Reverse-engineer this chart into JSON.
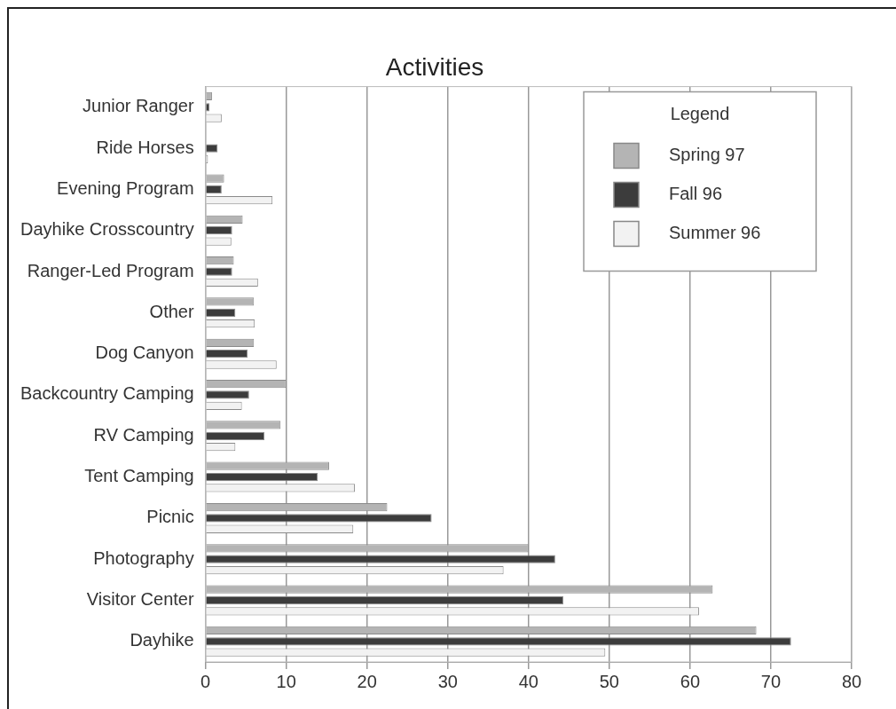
{
  "chart_data": {
    "type": "bar",
    "orientation": "horizontal",
    "title": "Activities",
    "legend_title": "Legend",
    "legend": "top right",
    "grid": "x",
    "categories": [
      "Junior Ranger",
      "Ride Horses",
      "Evening Program",
      "Dayhike Crosscountry",
      "Ranger-Led Program",
      "Other",
      "Dog Canyon",
      "Backcountry Camping",
      "RV Camping",
      "Tent Camping",
      "Picnic",
      "Photography",
      "Visitor Center",
      "Dayhike"
    ],
    "series": [
      {
        "name": "Spring 97",
        "color": "#b4b4b4",
        "values": [
          0.8,
          0,
          2.3,
          4.6,
          3.5,
          6,
          6,
          10,
          9.3,
          15.3,
          22.5,
          40,
          62.8,
          68.2
        ]
      },
      {
        "name": "Fall 96",
        "color": "#3c3c3c",
        "values": [
          0.5,
          1.5,
          2,
          3.3,
          3.3,
          3.7,
          5.2,
          5.4,
          7.3,
          13.9,
          28,
          43.3,
          44.3,
          72.5
        ]
      },
      {
        "name": "Summer 96",
        "color": "#f2f2f2",
        "values": [
          2,
          0.3,
          8.3,
          3.2,
          6.5,
          6.1,
          8.8,
          4.5,
          3.7,
          18.5,
          18.3,
          36.9,
          61.1,
          49.5
        ]
      }
    ],
    "xlim": [
      0,
      80
    ],
    "xticks": [
      0,
      10,
      20,
      30,
      40,
      50,
      60,
      70,
      80
    ]
  }
}
